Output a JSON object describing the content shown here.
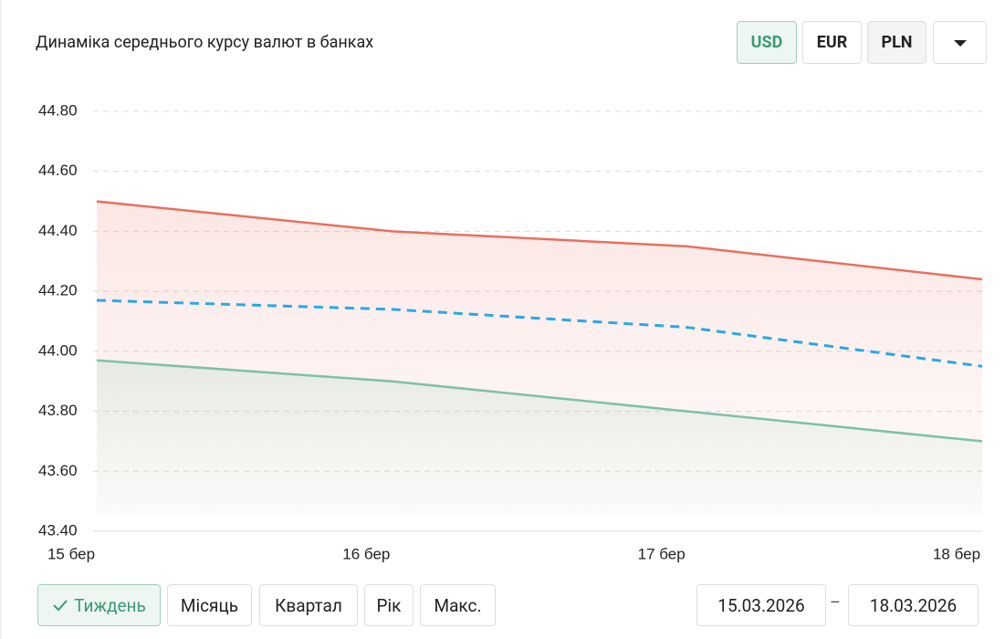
{
  "header": {
    "title": "Динаміка середнього курсу валют в банках",
    "currencies": [
      "USD",
      "EUR",
      "PLN"
    ]
  },
  "chart_data": {
    "type": "line",
    "categories": [
      "15 бер",
      "16 бер",
      "17 бер",
      "18 бер"
    ],
    "series": [
      {
        "color": "#e8705f",
        "values": [
          44.5,
          44.4,
          44.35,
          44.24
        ],
        "area": true,
        "dashed": false
      },
      {
        "color": "#2aa8e8",
        "values": [
          44.17,
          44.14,
          44.08,
          43.95
        ],
        "area": false,
        "dashed": true
      },
      {
        "color": "#7cc2a4",
        "values": [
          43.97,
          43.9,
          43.8,
          43.7
        ],
        "area": true,
        "dashed": false
      }
    ],
    "ylim": [
      43.4,
      44.8
    ],
    "yticks": [
      {
        "value": 43.4,
        "label": "43.40"
      },
      {
        "value": 43.6,
        "label": "43.60"
      },
      {
        "value": 43.8,
        "label": "43.80"
      },
      {
        "value": 44.0,
        "label": "44.00"
      },
      {
        "value": 44.2,
        "label": "44.20"
      },
      {
        "value": 44.4,
        "label": "44.40"
      },
      {
        "value": 44.6,
        "label": "44.60"
      },
      {
        "value": 44.8,
        "label": "44.80"
      }
    ],
    "grid": true
  },
  "footer": {
    "periods": [
      "Тиждень",
      "Місяць",
      "Квартал",
      "Рік",
      "Макс."
    ],
    "date_from": "15.03.2026",
    "date_separator": "–",
    "date_to": "18.03.2026"
  }
}
